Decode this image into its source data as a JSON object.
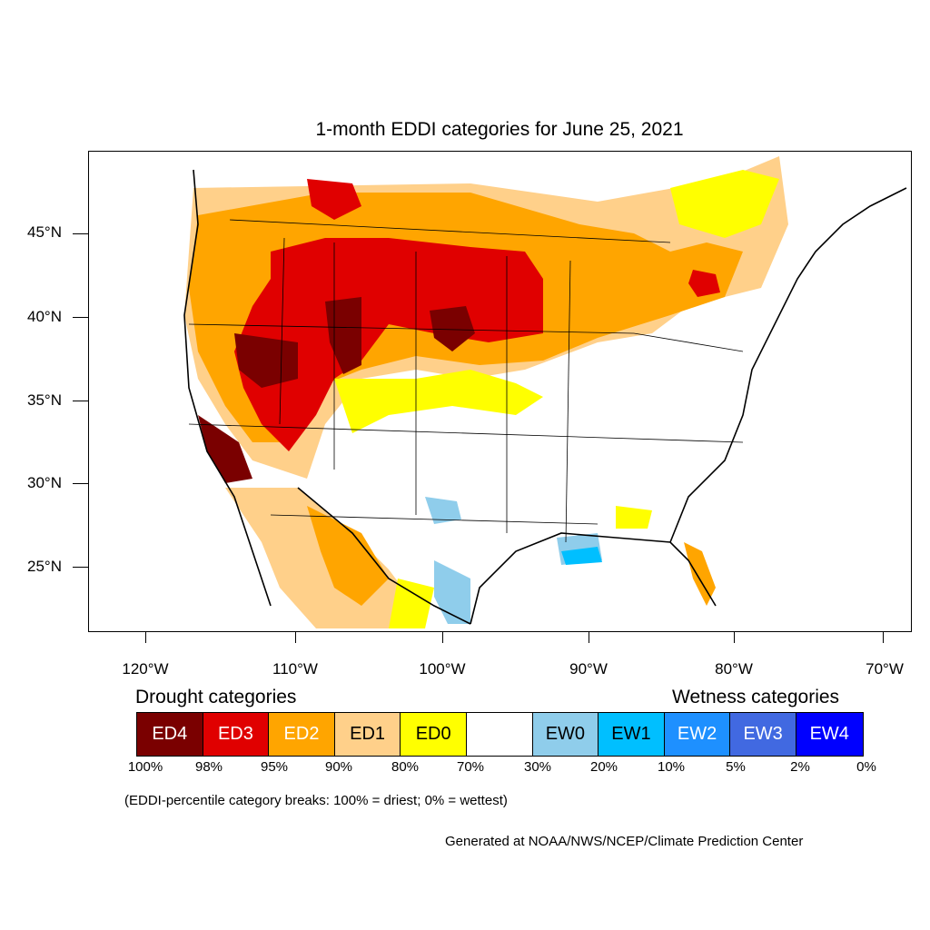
{
  "title": "1-month EDDI categories for June 25, 2021",
  "map": {
    "lat_labels": [
      "45°N",
      "40°N",
      "35°N",
      "30°N",
      "25°N"
    ],
    "lon_labels": [
      "120°W",
      "110°W",
      "100°W",
      "90°W",
      "80°W",
      "70°W"
    ],
    "region": "Contiguous United States with surrounding Canada and Mexico",
    "colors": {
      "ED4": "#7a0000",
      "ED3": "#e00000",
      "ED2": "#ffa500",
      "ED1": "#ffd08a",
      "ED0": "#ffff00",
      "neutral": "#ffffff",
      "EW0": "#8fcdeb",
      "EW1": "#00bfff",
      "EW2": "#1e90ff",
      "EW3": "#4169e1",
      "EW4": "#0000ff"
    }
  },
  "legend": {
    "drought_heading": "Drought categories",
    "wetness_heading": "Wetness categories",
    "categories": [
      {
        "label": "ED4",
        "color": "#7a0000",
        "text_color": "#ffffff"
      },
      {
        "label": "ED3",
        "color": "#e00000",
        "text_color": "#ffffff"
      },
      {
        "label": "ED2",
        "color": "#ffa500",
        "text_color": "#ffffff"
      },
      {
        "label": "ED1",
        "color": "#ffd08a",
        "text_color": "#000000"
      },
      {
        "label": "ED0",
        "color": "#ffff00",
        "text_color": "#000000"
      },
      {
        "label": "",
        "color": "#ffffff",
        "text_color": "#000000"
      },
      {
        "label": "EW0",
        "color": "#8fcdeb",
        "text_color": "#000000"
      },
      {
        "label": "EW1",
        "color": "#00bfff",
        "text_color": "#000000"
      },
      {
        "label": "EW2",
        "color": "#1e90ff",
        "text_color": "#ffffff"
      },
      {
        "label": "EW3",
        "color": "#4169e1",
        "text_color": "#ffffff"
      },
      {
        "label": "EW4",
        "color": "#0000ff",
        "text_color": "#ffffff"
      }
    ],
    "percentiles": [
      "100%",
      "98%",
      "95%",
      "90%",
      "80%",
      "70%",
      "30%",
      "20%",
      "10%",
      "5%",
      "2%",
      "0%"
    ]
  },
  "note": "(EDDI-percentile category breaks: 100% = driest; 0% = wettest)",
  "credit": "Generated at NOAA/NWS/NCEP/Climate Prediction Center"
}
